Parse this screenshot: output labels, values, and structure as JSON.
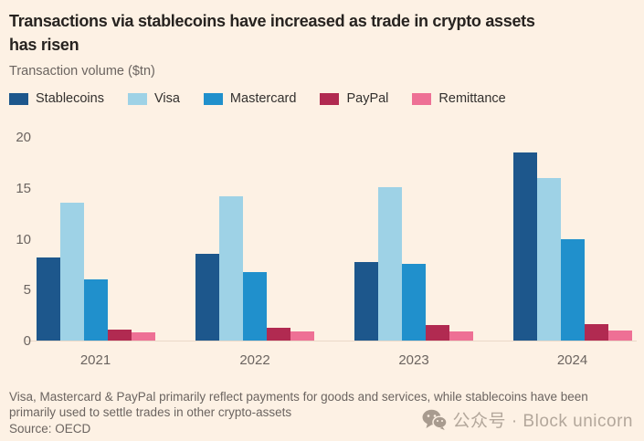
{
  "header": {
    "title": "Transactions via stablecoins have increased as trade in crypto assets\nhas risen",
    "subtitle": "Transaction volume ($tn)"
  },
  "chart_data": {
    "type": "bar",
    "title": "Transactions via stablecoins have increased as trade in crypto assets has risen",
    "ylabel": "Transaction volume ($tn)",
    "categories": [
      "2021",
      "2022",
      "2023",
      "2024"
    ],
    "series": [
      {
        "name": "Stablecoins",
        "color": "#1d578c",
        "values": [
          8.2,
          8.5,
          7.7,
          18.5
        ]
      },
      {
        "name": "Visa",
        "color": "#9ed2e6",
        "values": [
          13.5,
          14.2,
          15.1,
          16.0
        ]
      },
      {
        "name": "Mastercard",
        "color": "#2090cc",
        "values": [
          6.0,
          6.7,
          7.5,
          10.0
        ]
      },
      {
        "name": "PayPal",
        "color": "#b12a51",
        "values": [
          1.1,
          1.3,
          1.5,
          1.6
        ]
      },
      {
        "name": "Remittance",
        "color": "#ee7095",
        "values": [
          0.8,
          0.9,
          0.9,
          1.0
        ]
      }
    ],
    "ylim": [
      0,
      20
    ],
    "yticks": [
      0,
      5,
      10,
      15,
      20
    ],
    "grid": false,
    "legend_position": "top"
  },
  "footer": {
    "caption": "Visa, Mastercard & PayPal primarily reflect payments for goods and services, while stablecoins have been\nprimarily used to settle trades in other crypto-assets",
    "source": "Source: OECD"
  },
  "watermark": {
    "icon": "wechat-icon",
    "text": "公众号 · Block unicorn"
  },
  "colors": {
    "background": "#fdf1e4",
    "title_text": "#272320",
    "muted_text": "#6b6460",
    "baseline": "#ead9c9",
    "watermark": "#b3a79b"
  }
}
